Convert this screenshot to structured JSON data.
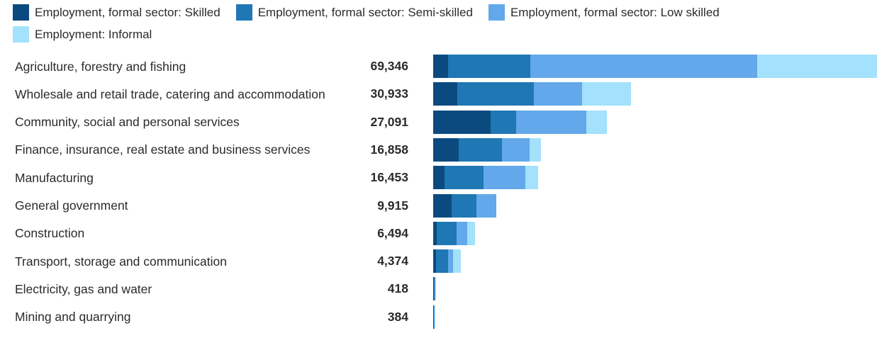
{
  "chart_data": {
    "type": "bar",
    "orientation": "horizontal",
    "stacked": true,
    "title": "",
    "xlabel": "",
    "ylabel": "",
    "legend_position": "top",
    "series": [
      {
        "name": "Employment, formal sector: Skilled",
        "color": "#0b4a7f",
        "values": [
          2300,
          3730,
          9000,
          4040,
          1800,
          2850,
          530,
          400,
          60,
          60
        ]
      },
      {
        "name": "Employment, formal sector: Semi-skilled",
        "color": "#1f77b4",
        "values": [
          12900,
          12020,
          3960,
          6660,
          6090,
          3880,
          3090,
          1880,
          110,
          100
        ]
      },
      {
        "name": "Employment, formal sector: Low skilled",
        "color": "#62a8ea",
        "values": [
          35460,
          7520,
          10960,
          4330,
          6530,
          3185,
          1670,
          840,
          120,
          114
        ]
      },
      {
        "name": "Employment: Informal",
        "color": "#a3e1fc",
        "values": [
          18686,
          7663,
          3171,
          1828,
          2033,
          0,
          1204,
          1254,
          128,
          110
        ]
      }
    ],
    "categories": [
      "Agriculture, forestry and fishing",
      "Wholesale and retail trade, catering and accommodation",
      "Community, social and personal services",
      "Finance, insurance, real estate and business services",
      "Manufacturing",
      "General government",
      "Construction",
      "Transport, storage and communication",
      "Electricity, gas and water",
      "Mining and quarrying"
    ],
    "totals": [
      "69,346",
      "30,933",
      "27,091",
      "16,858",
      "16,453",
      "9,915",
      "6,494",
      "4,374",
      "418",
      "384"
    ],
    "max_total": 69346
  }
}
